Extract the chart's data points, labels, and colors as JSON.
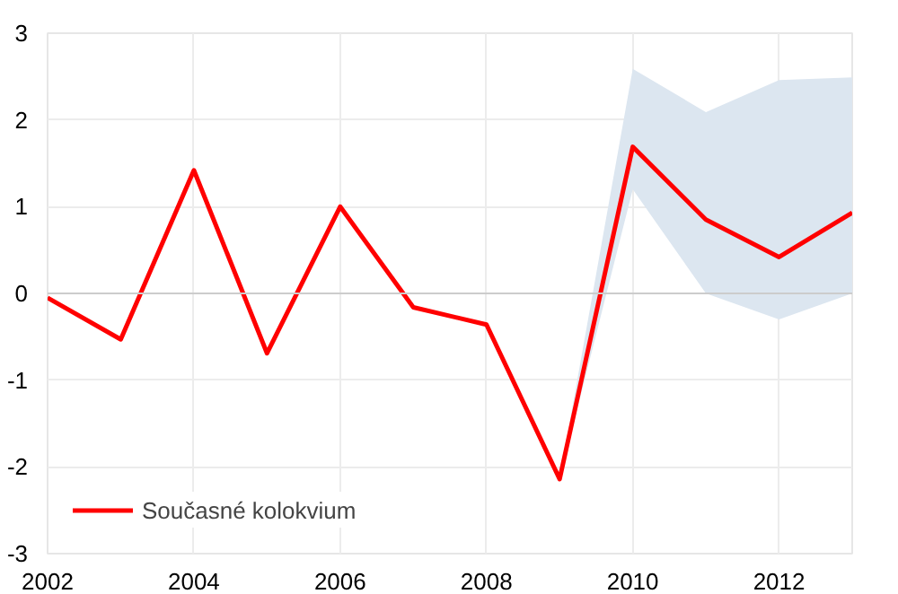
{
  "chart_data": {
    "type": "line",
    "x": [
      2002,
      2003,
      2004,
      2005,
      2006,
      2007,
      2008,
      2009,
      2010,
      2011,
      2012,
      2013
    ],
    "series": [
      {
        "name": "Současné kolokvium",
        "color": "#ff0000",
        "values": [
          -0.05,
          -0.53,
          1.42,
          -0.69,
          1.0,
          -0.16,
          -0.36,
          -2.14,
          1.69,
          0.85,
          0.42,
          0.93
        ],
        "lower": [
          null,
          null,
          null,
          null,
          null,
          null,
          null,
          -2.14,
          1.2,
          0.0,
          -0.3,
          0.0
        ],
        "upper": [
          null,
          null,
          null,
          null,
          null,
          null,
          null,
          -2.14,
          2.59,
          2.09,
          2.46,
          2.49
        ]
      }
    ],
    "xlim": [
      2002,
      2013
    ],
    "xticks": [
      2002,
      2004,
      2006,
      2008,
      2010,
      2012
    ],
    "ylim": [
      -3,
      3
    ],
    "yticks": [
      -3,
      -2,
      -1,
      0,
      1,
      2,
      3
    ],
    "grid": true,
    "legend": "bottom left",
    "line_style": "solid"
  }
}
